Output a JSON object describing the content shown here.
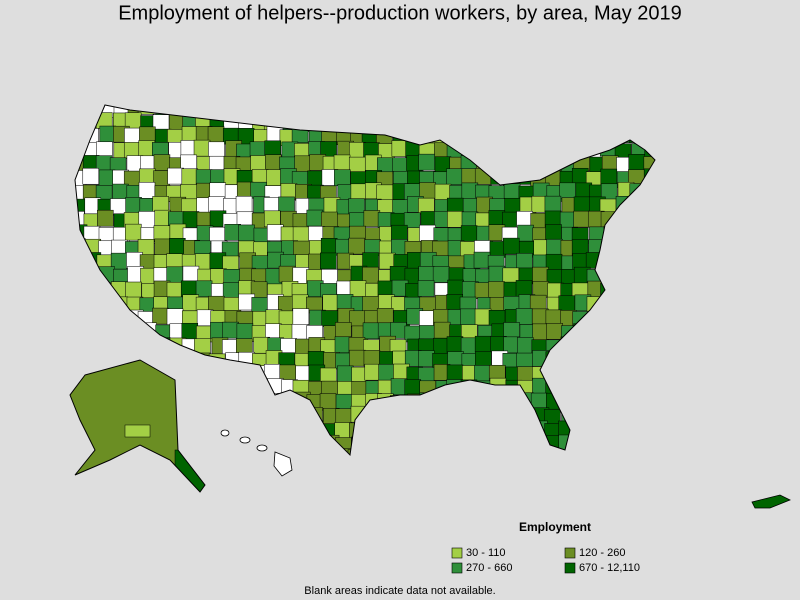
{
  "title": "Employment of helpers--production workers, by area, May 2019",
  "legend": {
    "title": "Employment",
    "items": [
      {
        "label": "30 - 110",
        "color": "#a3cf45"
      },
      {
        "label": "120 - 260",
        "color": "#6b8e23"
      },
      {
        "label": "270 - 660",
        "color": "#2f8f3a"
      },
      {
        "label": "670 - 12,110",
        "color": "#006400"
      }
    ]
  },
  "footnote": "Blank areas indicate data not available."
}
